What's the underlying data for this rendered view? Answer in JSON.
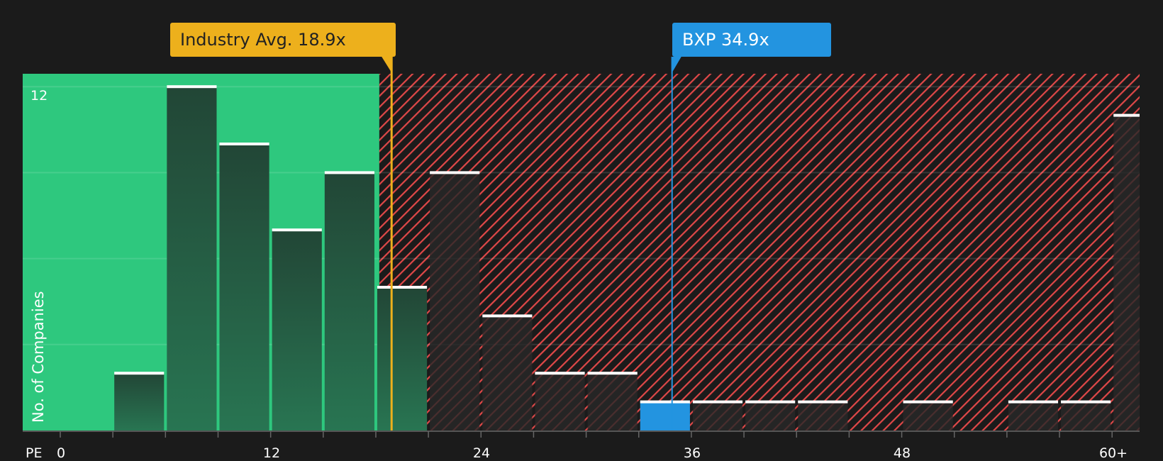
{
  "chart_data": {
    "type": "bar",
    "title": "",
    "xlabel": "PE",
    "ylabel": "No. of Companies",
    "x_tick_labels": [
      "0",
      "12",
      "24",
      "36",
      "48",
      "60+"
    ],
    "y_tick_labels": [
      "12"
    ],
    "ylim": [
      0,
      12.4
    ],
    "grid": true,
    "bin_width": 3,
    "categories": [
      "0-3",
      "3-6",
      "6-9",
      "9-12",
      "12-15",
      "15-18",
      "18-21",
      "21-24",
      "24-27",
      "27-30",
      "30-33",
      "33-36",
      "36-39",
      "39-42",
      "42-45",
      "45-48",
      "48-51",
      "51-54",
      "54-57",
      "57-60",
      "60+"
    ],
    "values": [
      0,
      2,
      12,
      10,
      7,
      9,
      5,
      9,
      4,
      2,
      2,
      1,
      1,
      1,
      1,
      0,
      1,
      0,
      1,
      1,
      11
    ],
    "highlight_bin": "33-36",
    "regions": [
      {
        "name": "below-average",
        "from": 0,
        "to": 18.2,
        "color": "#2EC87E"
      },
      {
        "name": "above-average",
        "from": 18.2,
        "to": 63,
        "color": "#E04848",
        "pattern": "diagonal-hatch"
      }
    ],
    "annotations": [
      {
        "label": "Industry Avg. 18.9x",
        "value": 18.9,
        "color": "#EDB01C"
      },
      {
        "label": "BXP 34.9x",
        "value": 34.9,
        "color": "#2394E0"
      }
    ]
  },
  "labels": {
    "industry_callout": "Industry Avg. 18.9x",
    "bxp_callout": "BXP 34.9x",
    "y_axis_title": "No. of Companies",
    "y_tick_12": "12",
    "x_axis_prefix": "PE",
    "x_ticks": [
      "0",
      "12",
      "24",
      "36",
      "48",
      "60+"
    ]
  },
  "colors": {
    "background": "#1b1b1b",
    "green_region": "#2EC87E",
    "bar_dark": "#24493A",
    "hatch_red": "#E04848",
    "industry": "#EDB01C",
    "company": "#2394E0",
    "bar_top": "#ffffff"
  }
}
